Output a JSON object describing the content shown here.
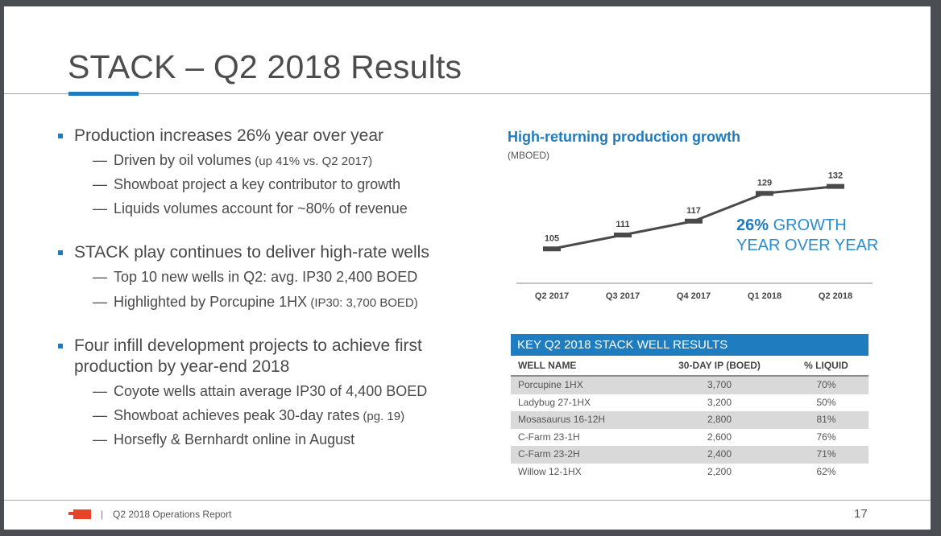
{
  "slide": {
    "title": "STACK – Q2 2018 Results",
    "bullets": [
      {
        "text": "Production increases 26% year over year",
        "subs": [
          {
            "text": "Driven by oil volumes",
            "note": " (up 41% vs. Q2 2017)"
          },
          {
            "text": "Showboat project a key contributor to growth",
            "note": ""
          },
          {
            "text": "Liquids volumes account for ~80% of revenue",
            "note": ""
          }
        ]
      },
      {
        "text": "STACK play continues to deliver high-rate wells",
        "subs": [
          {
            "text": "Top 10 new wells in Q2: avg. IP30 2,400 BOED",
            "note": ""
          },
          {
            "text": "Highlighted by Porcupine 1HX",
            "note": " (IP30: 3,700 BOED)"
          }
        ]
      },
      {
        "text_line1": "Four infill development projects to achieve first",
        "text_line2": "production by year-end 2018",
        "subs": [
          {
            "text": "Coyote wells attain average IP30 of 4,400 BOED",
            "note": ""
          },
          {
            "text": "Showboat achieves peak 30-day rates",
            "note": " (pg. 19)"
          },
          {
            "text": "Horsefly & Bernhardt online in August",
            "note": ""
          }
        ]
      }
    ],
    "dash": "—",
    "growth_callout": {
      "pct": "26%",
      "line1": " GROWTH",
      "line2": "YEAR OVER YEAR"
    },
    "table": {
      "title": "KEY Q2 2018 STACK WELL RESULTS",
      "columns": [
        "WELL NAME",
        "30-DAY IP (BOED)",
        "% LIQUID"
      ],
      "rows": [
        [
          "Porcupine 1HX",
          "3,700",
          "70%"
        ],
        [
          "Ladybug 27-1HX",
          "3,200",
          "50%"
        ],
        [
          "Mosasaurus 16-12H",
          "2,800",
          "81%"
        ],
        [
          "C-Farm 23-1H",
          "2,600",
          "76%"
        ],
        [
          "C-Farm 23-2H",
          "2,400",
          "71%"
        ],
        [
          "Willow 12-1HX",
          "2,200",
          "62%"
        ]
      ]
    },
    "footer": {
      "separator": "|",
      "report": "Q2 2018 Operations Report",
      "page": "17"
    },
    "colors": {
      "accent": "#1e7bbf",
      "logo": "#e8432b",
      "line": "#4a4a4a"
    }
  },
  "chart_data": {
    "type": "line",
    "title": "High-returning production growth",
    "ylabel": "(MBOED)",
    "xlabel": "",
    "categories": [
      "Q2 2017",
      "Q3 2017",
      "Q4 2017",
      "Q1 2018",
      "Q2 2018"
    ],
    "values": [
      105,
      111,
      117,
      129,
      132
    ],
    "ylim": [
      95,
      135
    ],
    "grid": false,
    "legend": "none"
  }
}
